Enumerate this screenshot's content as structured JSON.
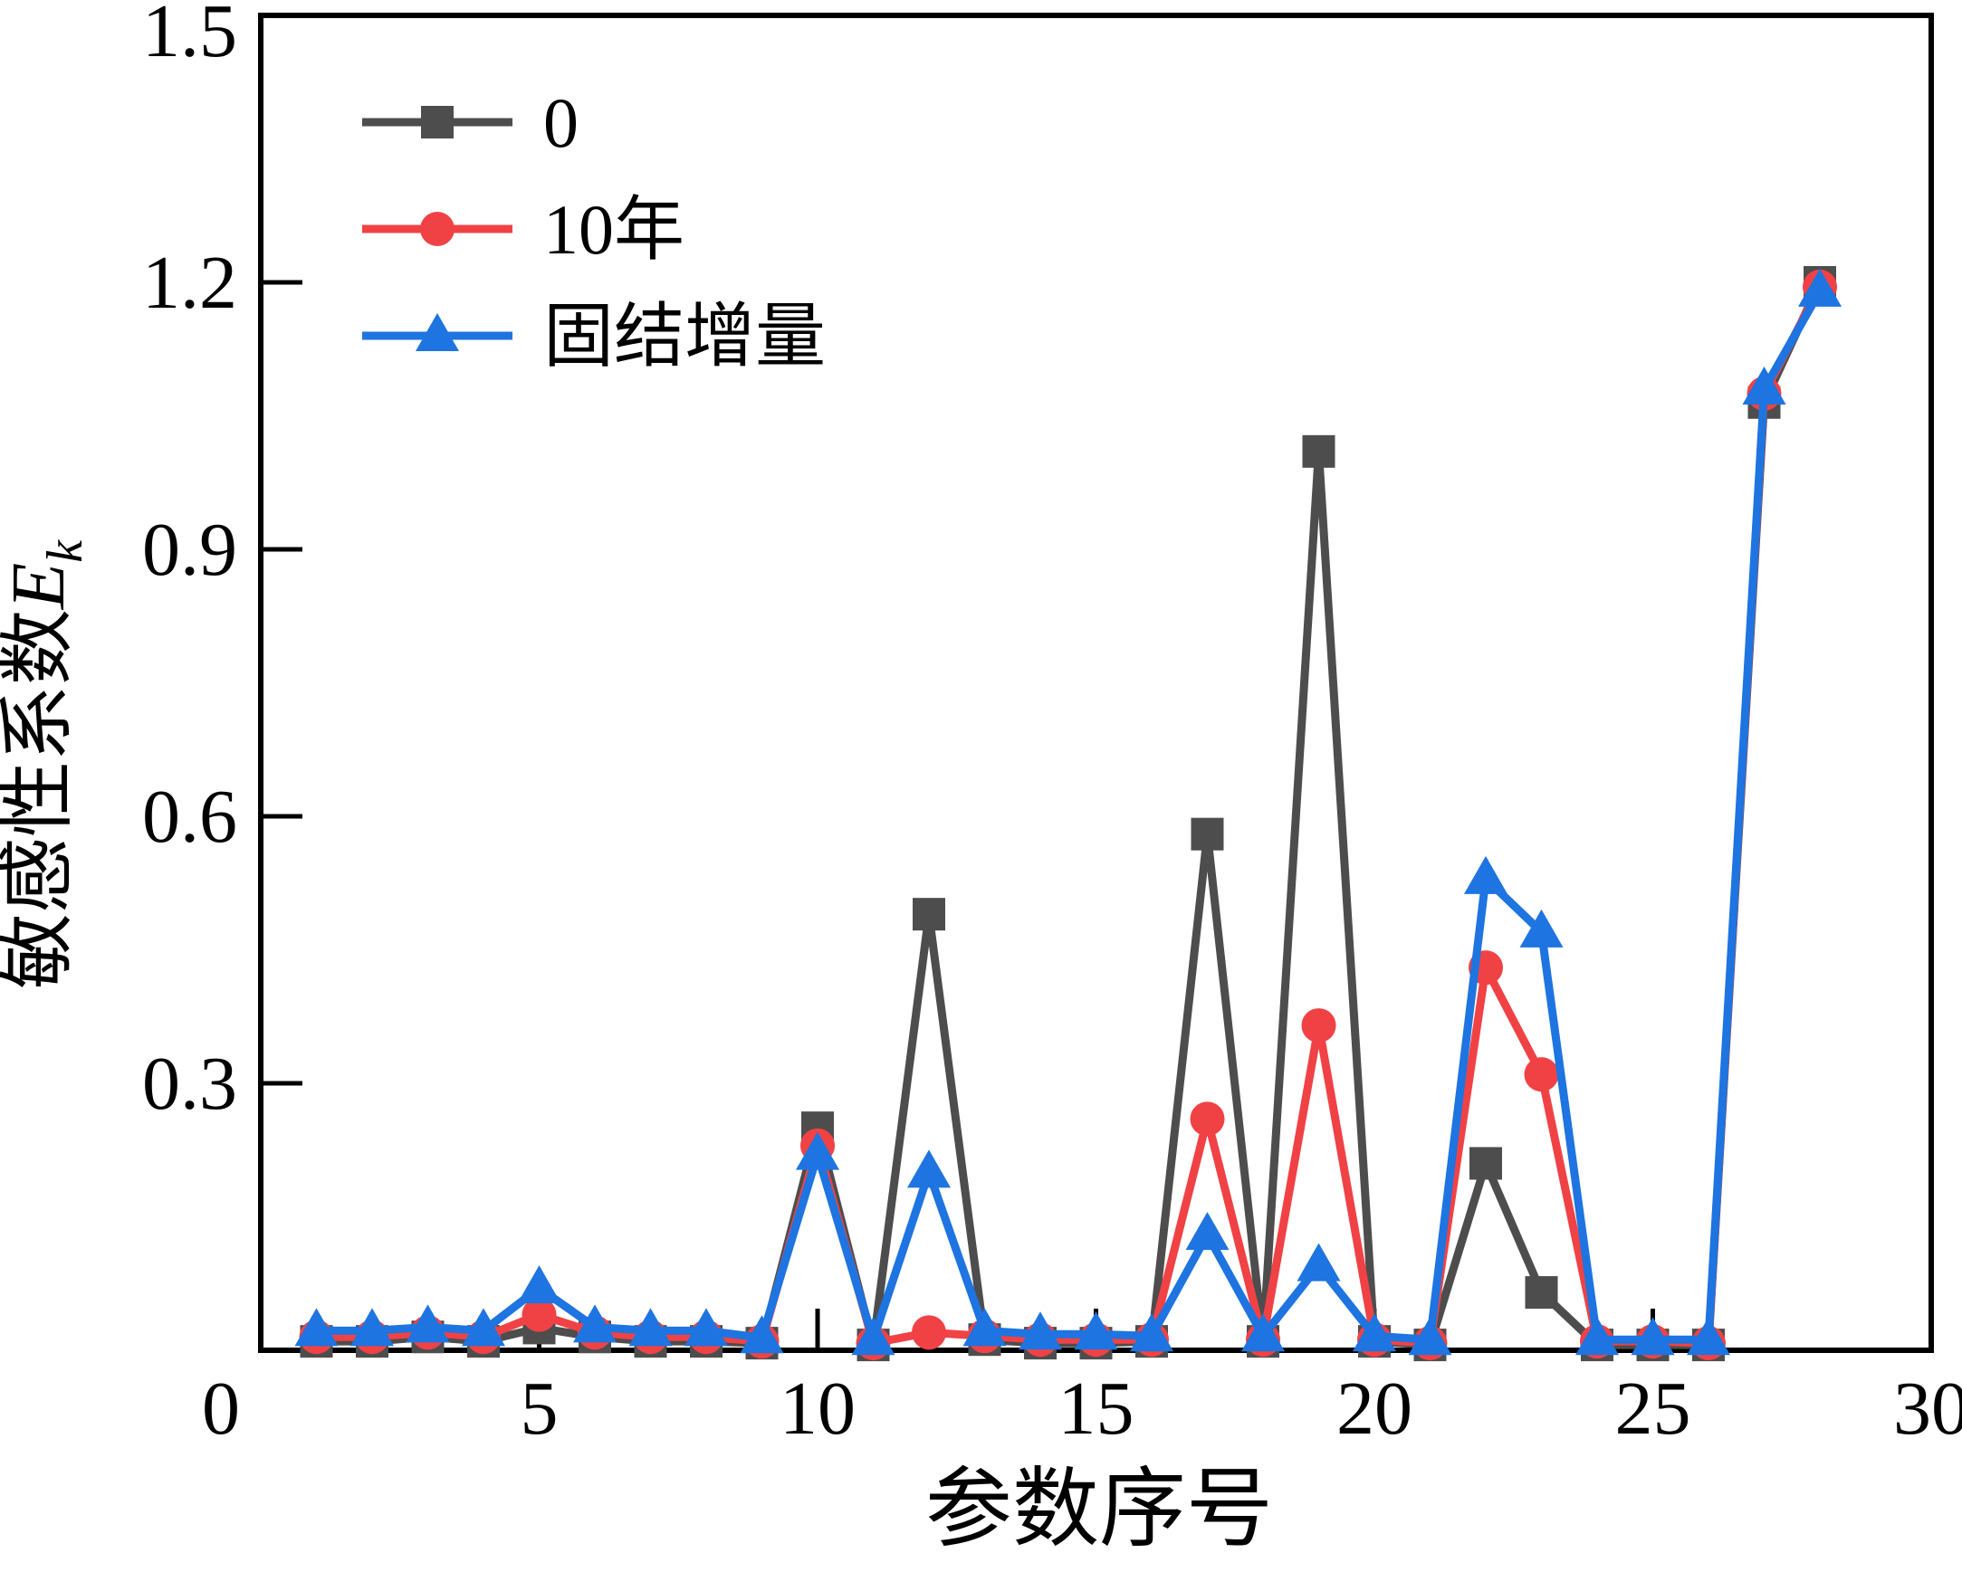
{
  "figure": {
    "background_color": "#ffffff",
    "axis_color": "#000000"
  },
  "chart_data": {
    "type": "line",
    "title": "",
    "xlabel": "参数序号",
    "ylabel": "敏感性系数Ek",
    "ylabel_parts": {
      "prefix": "敏感性系数",
      "var": "E",
      "sub": "k"
    },
    "xlim": [
      0,
      30
    ],
    "ylim": [
      0,
      1.5
    ],
    "grid": false,
    "legend_position": "upper-left-inside",
    "origin_label": "0",
    "x_major_ticks": [
      5,
      10,
      15,
      20,
      25
    ],
    "x_tick_labels": [
      {
        "value": 5,
        "label": "5"
      },
      {
        "value": 10,
        "label": "10"
      },
      {
        "value": 15,
        "label": "15"
      },
      {
        "value": 20,
        "label": "20"
      },
      {
        "value": 25,
        "label": "25"
      },
      {
        "value": 30,
        "label": "30"
      }
    ],
    "y_major_ticks": [
      0.3,
      0.6,
      0.9,
      1.2
    ],
    "y_tick_labels": [
      {
        "value": 0.3,
        "label": "0.3"
      },
      {
        "value": 0.6,
        "label": "0.6"
      },
      {
        "value": 0.9,
        "label": "0.9"
      },
      {
        "value": 1.2,
        "label": "1.2"
      },
      {
        "value": 1.5,
        "label": "1.5"
      }
    ],
    "x": [
      1,
      2,
      3,
      4,
      5,
      6,
      7,
      8,
      9,
      10,
      11,
      12,
      13,
      14,
      15,
      16,
      17,
      18,
      19,
      20,
      21,
      22,
      23,
      24,
      25,
      26,
      27,
      28
    ],
    "series": [
      {
        "name": "0",
        "color": "#4D4D4D",
        "marker": "square",
        "values": [
          0.01,
          0.01,
          0.015,
          0.01,
          0.025,
          0.015,
          0.01,
          0.01,
          0.008,
          0.25,
          0.006,
          0.49,
          0.012,
          0.008,
          0.008,
          0.01,
          0.58,
          0.01,
          1.01,
          0.01,
          0.006,
          0.21,
          0.065,
          0.006,
          0.006,
          0.006,
          1.065,
          1.2
        ]
      },
      {
        "name": "10年",
        "color": "#F04245",
        "marker": "circle",
        "values": [
          0.015,
          0.015,
          0.02,
          0.015,
          0.04,
          0.02,
          0.015,
          0.015,
          0.01,
          0.23,
          0.008,
          0.02,
          0.016,
          0.012,
          0.012,
          0.012,
          0.26,
          0.012,
          0.365,
          0.012,
          0.008,
          0.43,
          0.31,
          0.01,
          0.01,
          0.008,
          1.075,
          1.195
        ]
      },
      {
        "name": "固结增量",
        "color": "#1E74E0",
        "marker": "triangle",
        "values": [
          0.022,
          0.022,
          0.026,
          0.022,
          0.07,
          0.026,
          0.022,
          0.022,
          0.014,
          0.22,
          0.012,
          0.2,
          0.022,
          0.018,
          0.018,
          0.016,
          0.13,
          0.016,
          0.095,
          0.016,
          0.012,
          0.53,
          0.47,
          0.012,
          0.012,
          0.012,
          1.08,
          1.19
        ]
      }
    ]
  }
}
